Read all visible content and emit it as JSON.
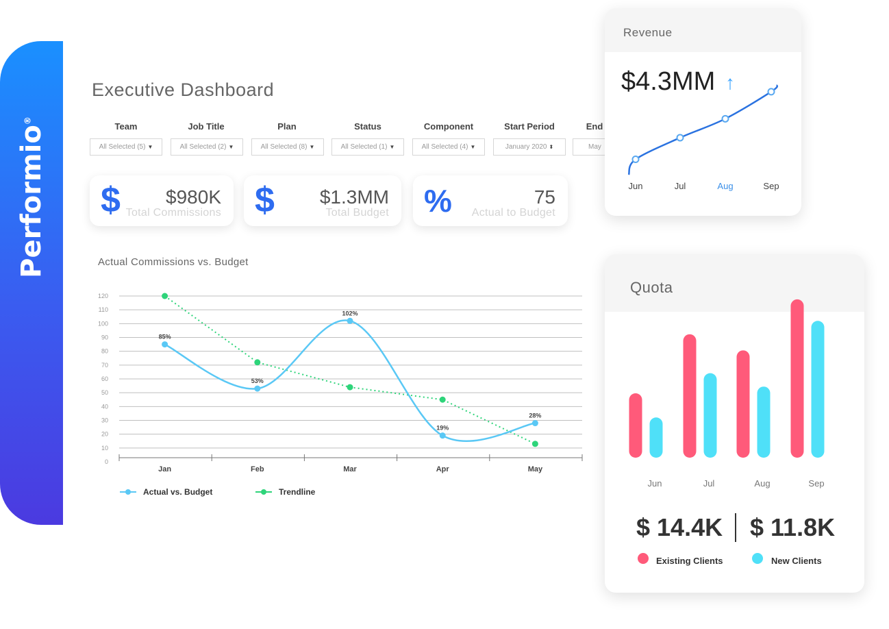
{
  "brand": {
    "name": "Performio",
    "mark": "®"
  },
  "page": {
    "title": "Executive Dashboard"
  },
  "filters": [
    {
      "label": "Team",
      "value": "All Selected (5)"
    },
    {
      "label": "Job Title",
      "value": "All Selected (2)"
    },
    {
      "label": "Plan",
      "value": "All Selected (8)"
    },
    {
      "label": "Status",
      "value": "All Selected (1)"
    },
    {
      "label": "Component",
      "value": "All Selected (4)"
    },
    {
      "label": "Start Period",
      "value": "January 2020"
    },
    {
      "label": "End",
      "value": "May"
    }
  ],
  "kpis": [
    {
      "symbol": "$",
      "value": "$980K",
      "label": "Total Commissions"
    },
    {
      "symbol": "$",
      "value": "$1.3MM",
      "label": "Total Budget"
    },
    {
      "symbol": "%",
      "value": "75",
      "label": "Actual to Budget"
    }
  ],
  "colors": {
    "blue_line": "#5ac8f5",
    "green_line": "#2ed47a",
    "quota_red": "#ff5a7a",
    "quota_cyan": "#4fe0f8",
    "revenue_line": "#2a72e0",
    "brand_top": "#1a90ff",
    "brand_bottom": "#4b3ae0"
  },
  "chart_data": [
    {
      "type": "line",
      "title": "Actual Commissions vs. Budget",
      "categories": [
        "Jan",
        "Feb",
        "Mar",
        "Apr",
        "May"
      ],
      "yticks": [
        "0",
        "10",
        "20",
        "30",
        "40",
        "50",
        "60",
        "70",
        "80",
        "90",
        "100",
        "110",
        "120"
      ],
      "ylim": [
        0,
        120
      ],
      "grid": true,
      "legend": "bottom-left",
      "series": [
        {
          "name": "Actual vs. Budget",
          "values": [
            85,
            53,
            102,
            19,
            28
          ],
          "labels": [
            "85%",
            "53%",
            "102%",
            "19%",
            "28%"
          ]
        },
        {
          "name": "Trendline",
          "values": [
            120,
            72,
            54,
            45,
            13
          ]
        }
      ]
    },
    {
      "type": "line",
      "title": "Revenue",
      "categories": [
        "Jun",
        "Jul",
        "Aug",
        "Sep"
      ],
      "highlight": "Aug",
      "values": [
        1.8,
        2.6,
        3.3,
        4.3
      ]
    },
    {
      "type": "bar",
      "title": "Quota",
      "categories": [
        "Jun",
        "Jul",
        "Aug",
        "Sep"
      ],
      "series": [
        {
          "name": "Existing Clients",
          "values": [
            48,
            92,
            80,
            118
          ]
        },
        {
          "name": "New Clients",
          "values": [
            30,
            63,
            53,
            102
          ]
        }
      ]
    }
  ],
  "revenue": {
    "title": "Revenue",
    "value": "$4.3MM",
    "arrow": "↑"
  },
  "quota": {
    "title": "Quota",
    "totals": [
      {
        "value": "$ 14.4K",
        "label": "Existing Clients"
      },
      {
        "value": "$ 11.8K",
        "label": "New Clients"
      }
    ]
  }
}
